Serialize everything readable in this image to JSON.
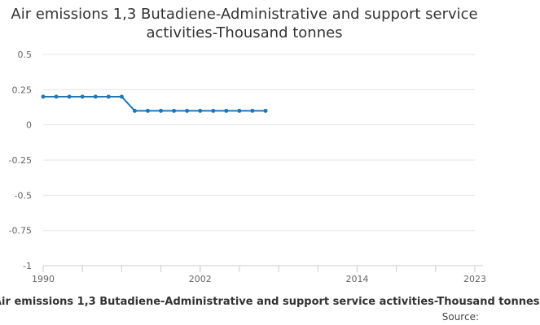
{
  "chart_data": {
    "type": "line",
    "title": "Air emissions 1,3 Butadiene-Administrative and support service activities-Thousand tonnes",
    "x_ticks": [
      1990,
      2002,
      2014,
      2023
    ],
    "y_ticks": [
      0.5,
      0.25,
      0,
      -0.25,
      -0.5,
      -0.75,
      -1
    ],
    "y_tick_labels": [
      "0.5",
      "0.25",
      "0",
      "-0.25",
      "-0.5",
      "-0.75",
      "-1"
    ],
    "xlim": [
      1990,
      2023
    ],
    "ylim": [
      -1,
      0.5
    ],
    "grid": "horizontal",
    "series": [
      {
        "color": "#1f77b4",
        "x": [
          1990,
          1991,
          1992,
          1993,
          1994,
          1995,
          1996,
          1997,
          1998,
          1999,
          2000,
          2001,
          2002,
          2003,
          2004,
          2005,
          2006,
          2007
        ],
        "values": [
          0.2,
          0.2,
          0.2,
          0.2,
          0.2,
          0.2,
          0.2,
          0.1,
          0.1,
          0.1,
          0.1,
          0.1,
          0.1,
          0.1,
          0.1,
          0.1,
          0.1,
          0.1
        ]
      }
    ]
  },
  "caption": "Air emissions 1,3 Butadiene-Administrative and support service activities-Thousand tonnes",
  "source_label": "Source:"
}
